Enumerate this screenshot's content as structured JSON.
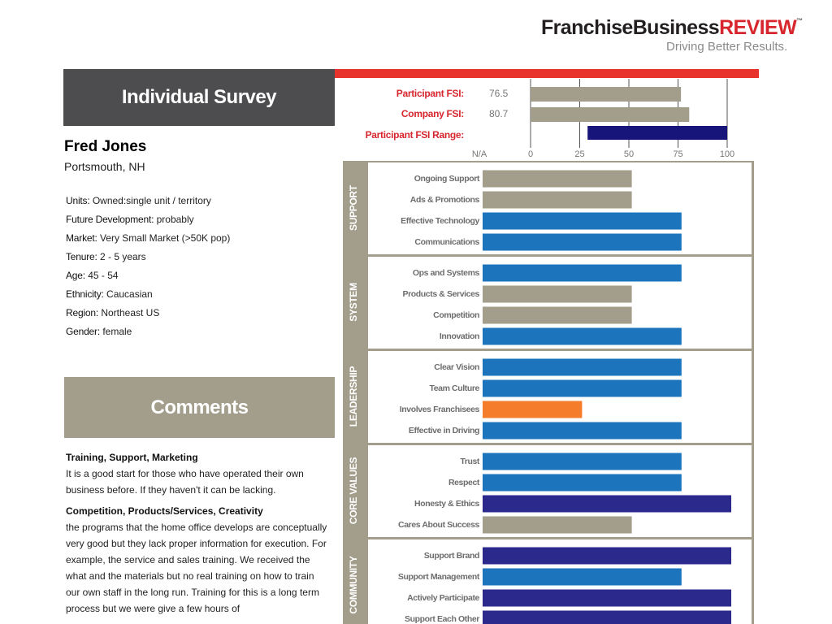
{
  "header": {
    "brand": "FranchiseBusiness",
    "brand_accent": "REVIEW",
    "trademark": "™",
    "tagline": "Driving Better Results."
  },
  "survey": {
    "title": "Individual Survey",
    "name": "Fred Jones",
    "location": "Portsmouth, NH",
    "attributes": [
      {
        "label": "Units:",
        "value": "Owned:single unit / territory"
      },
      {
        "label": "Future Development:",
        "value": "probably"
      },
      {
        "label": "Market:",
        "value": "Very Small Market (>50K pop)"
      },
      {
        "label": "Tenure:",
        "value": "2 - 5 years"
      },
      {
        "label": "Age:",
        "value": "45 - 54"
      },
      {
        "label": "Ethnicity:",
        "value": "Caucasian"
      },
      {
        "label": "Region:",
        "value": "Northeast US"
      },
      {
        "label": "Gender:",
        "value": "female"
      }
    ]
  },
  "comments": {
    "title": "Comments",
    "items": [
      {
        "heading": "Training, Support, Marketing",
        "text": "It is a good start for those who have operated their own business before. If they haven't it can be lacking."
      },
      {
        "heading": "Competition, Products/Services, Creativity",
        "text": "the programs that the home office develops are conceptually very good but they lack proper information for execution. For example, the service and sales training. We received the what and the materials but no real training on how to train our own staff in the long run. Training for this is a long term process but we were give a few hours of"
      }
    ]
  },
  "fsi": {
    "type": "bar",
    "rows": [
      {
        "label": "Participant FSI:",
        "value": 76.5,
        "color": "#a39e8c"
      },
      {
        "label": "Company FSI:",
        "value": 80.7,
        "color": "#a39e8c"
      }
    ],
    "range": {
      "label": "Participant FSI Range:",
      "low": 29,
      "high": 100,
      "color": "#17157a"
    },
    "na_label": "N/A",
    "xlim": [
      0,
      100
    ],
    "xticks": [
      0,
      25,
      50,
      75,
      100
    ]
  },
  "scores": {
    "type": "bar",
    "xlim": [
      0,
      100
    ],
    "groups": [
      {
        "title": "SUPPORT",
        "items": [
          {
            "label": "Ongoing Support",
            "value": 60,
            "color": "#a39e8c"
          },
          {
            "label": "Ads & Promotions",
            "value": 60,
            "color": "#a39e8c"
          },
          {
            "label": "Effective Technology",
            "value": 80,
            "color": "#1c75bc"
          },
          {
            "label": "Communications",
            "value": 80,
            "color": "#1c75bc"
          }
        ]
      },
      {
        "title": "SYSTEM",
        "items": [
          {
            "label": "Ops and Systems",
            "value": 80,
            "color": "#1c75bc"
          },
          {
            "label": "Products & Services",
            "value": 60,
            "color": "#a39e8c"
          },
          {
            "label": "Competition",
            "value": 60,
            "color": "#a39e8c"
          },
          {
            "label": "Innovation",
            "value": 80,
            "color": "#1c75bc"
          }
        ]
      },
      {
        "title": "LEADERSHIP",
        "items": [
          {
            "label": "Clear Vision",
            "value": 80,
            "color": "#1c75bc"
          },
          {
            "label": "Team Culture",
            "value": 80,
            "color": "#1c75bc"
          },
          {
            "label": "Involves Franchisees",
            "value": 40,
            "color": "#f47c2a"
          },
          {
            "label": "Effective in Driving",
            "value": 80,
            "color": "#1c75bc"
          }
        ]
      },
      {
        "title": "CORE VALUES",
        "items": [
          {
            "label": "Trust",
            "value": 80,
            "color": "#1c75bc"
          },
          {
            "label": "Respect",
            "value": 80,
            "color": "#1c75bc"
          },
          {
            "label": "Honesty & Ethics",
            "value": 100,
            "color": "#2b2a8c"
          },
          {
            "label": "Cares About Success",
            "value": 60,
            "color": "#a39e8c"
          }
        ]
      },
      {
        "title": "COMMUNITY",
        "items": [
          {
            "label": "Support Brand",
            "value": 100,
            "color": "#2b2a8c"
          },
          {
            "label": "Support Management",
            "value": 80,
            "color": "#1c75bc"
          },
          {
            "label": "Actively Participate",
            "value": 100,
            "color": "#2b2a8c"
          },
          {
            "label": "Support Each Other",
            "value": 100,
            "color": "#2b2a8c"
          }
        ]
      }
    ]
  }
}
